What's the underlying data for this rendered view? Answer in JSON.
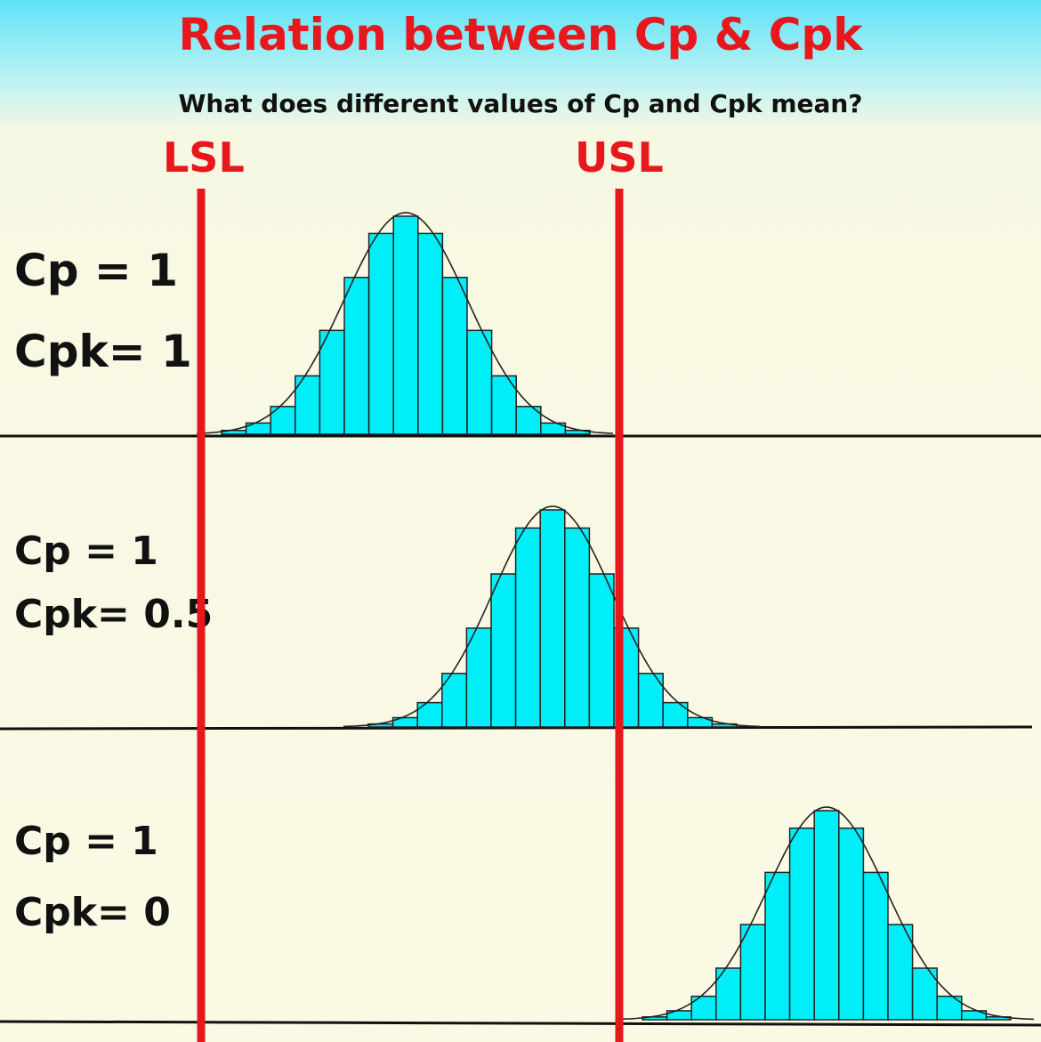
{
  "title": "Relation between Cp & Cpk",
  "subtitle": "What does different values of Cp and Cpk mean?",
  "limits": {
    "lower": "LSL",
    "upper": "USL"
  },
  "panels": [
    {
      "cp": "Cp = 1",
      "cpk": "Cpk= 1"
    },
    {
      "cp": "Cp = 1",
      "cpk": "Cpk= 0.5"
    },
    {
      "cp": "Cp = 1",
      "cpk": "Cpk= 0"
    }
  ],
  "colors": {
    "limit_line": "#e8171d",
    "bar_fill": "#00eef7",
    "bar_stroke": "#222222",
    "curve": "#222222"
  }
}
